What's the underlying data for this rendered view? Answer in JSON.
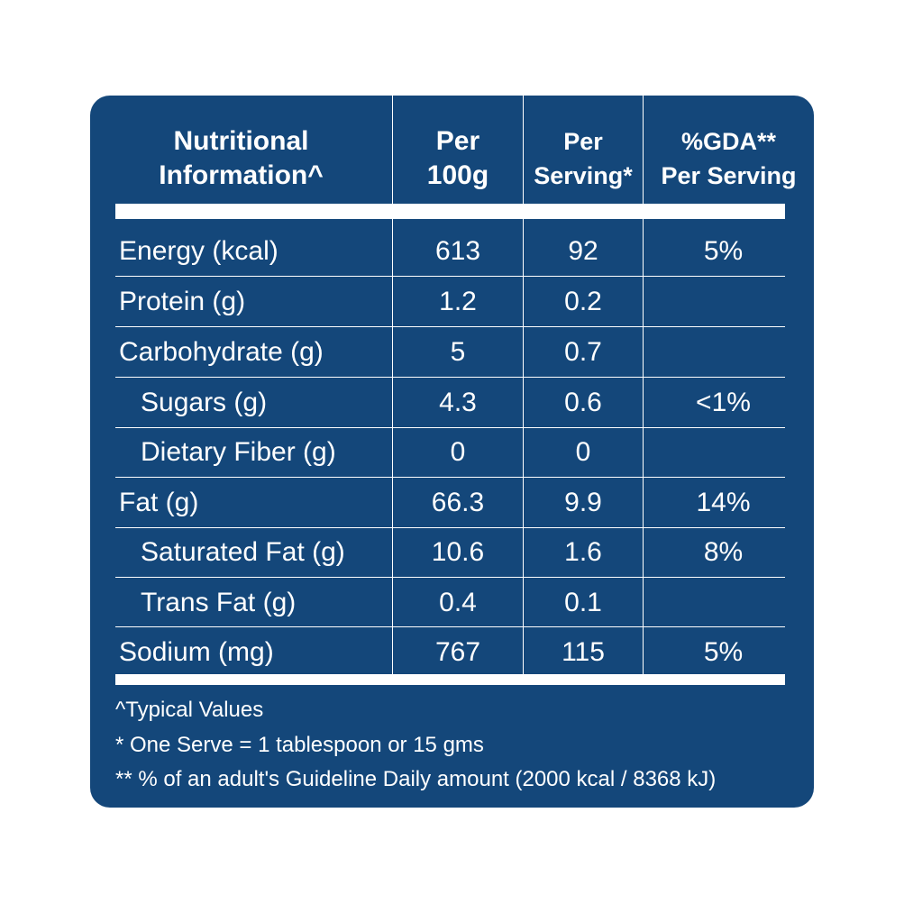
{
  "table": {
    "headers": [
      "Nutritional\nInformation^",
      "Per\n100g",
      "Per\nServing*",
      "%GDA**\nPer Serving"
    ],
    "rows": [
      {
        "nutrient": "Energy (kcal)",
        "per_100g": "613",
        "per_serving": "92",
        "gda": "5%"
      },
      {
        "nutrient": "Protein (g)",
        "per_100g": "1.2",
        "per_serving": "0.2",
        "gda": ""
      },
      {
        "nutrient": "Carbohydrate (g)",
        "per_100g": "5",
        "per_serving": "0.7",
        "gda": ""
      },
      {
        "nutrient": "Sugars (g)",
        "per_100g": "4.3",
        "per_serving": "0.6",
        "gda": "<1%"
      },
      {
        "nutrient": "Dietary Fiber (g)",
        "per_100g": "0",
        "per_serving": "0",
        "gda": ""
      },
      {
        "nutrient": "Fat (g)",
        "per_100g": "66.3",
        "per_serving": "9.9",
        "gda": "14%"
      },
      {
        "nutrient": "Saturated Fat (g)",
        "per_100g": "10.6",
        "per_serving": "1.6",
        "gda": "8%"
      },
      {
        "nutrient": "Trans Fat (g)",
        "per_100g": "0.4",
        "per_serving": "0.1",
        "gda": ""
      },
      {
        "nutrient": "Sodium (mg)",
        "per_100g": "767",
        "per_serving": "115",
        "gda": "5%"
      }
    ]
  },
  "footnotes": {
    "typical": "^Typical Values",
    "serve": "* One Serve = 1 tablespoon or 15 gms",
    "gda": "** % of an adult's Guideline Daily amount (2000 kcal / 8368 kJ)"
  },
  "colors": {
    "panel": "#14477a",
    "text": "#ffffff"
  }
}
